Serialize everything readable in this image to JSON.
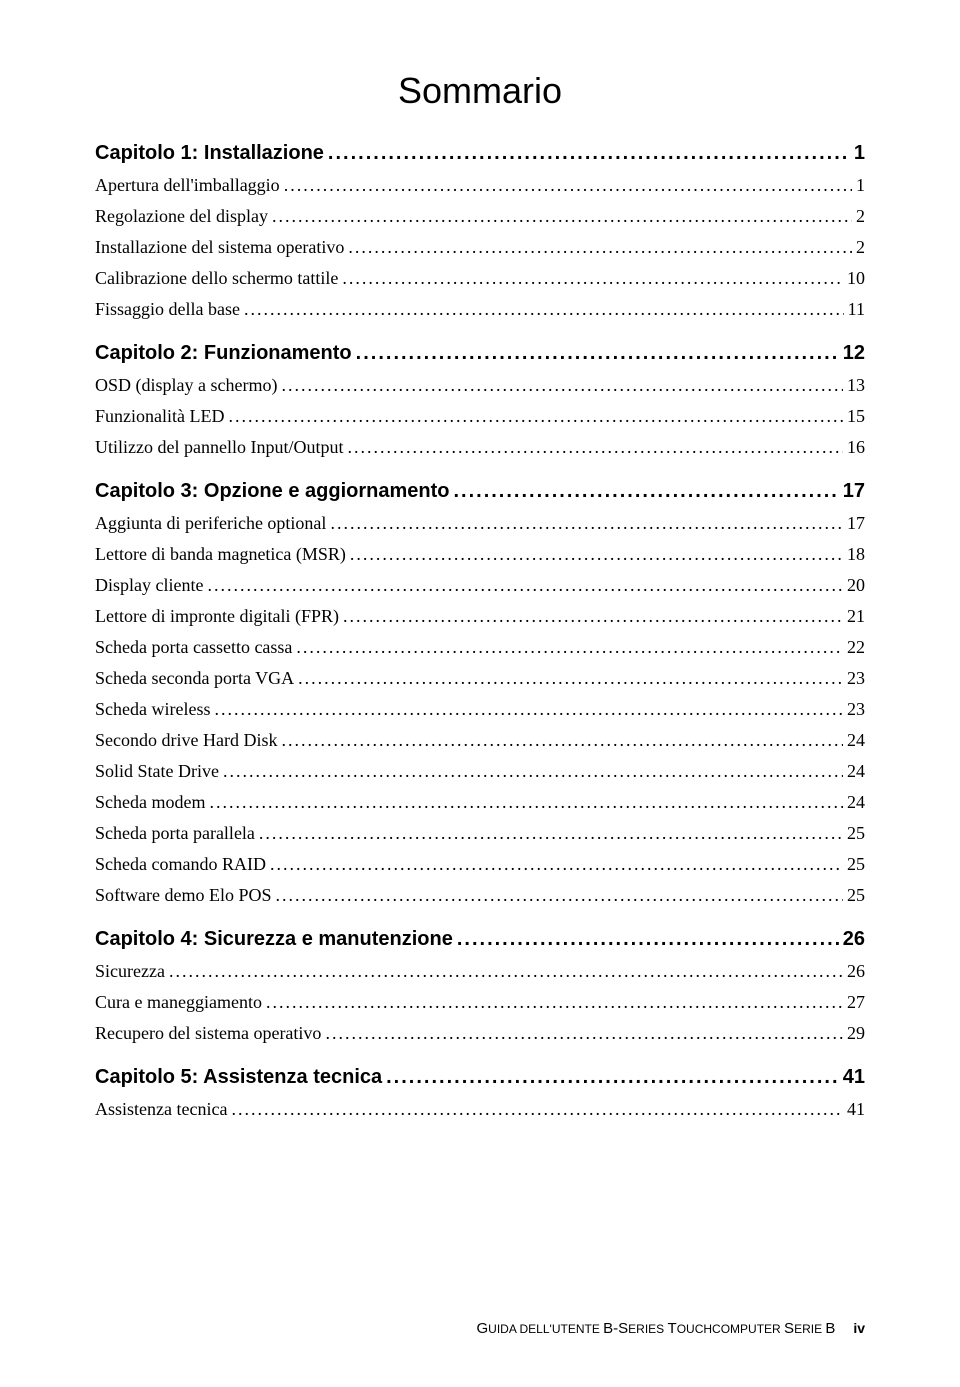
{
  "title": "Sommario",
  "leader_char": ".",
  "chapters": [
    {
      "heading": "Capitolo 1:  Installazione",
      "page": "1",
      "entries": [
        {
          "label": "Apertura dell'imballaggio",
          "page": "1"
        },
        {
          "label": "Regolazione del display",
          "page": "2"
        },
        {
          "label": "Installazione del sistema operativo",
          "page": "2"
        },
        {
          "label": "Calibrazione dello schermo tattile",
          "page": "10"
        },
        {
          "label": "Fissaggio della base",
          "page": "11"
        }
      ]
    },
    {
      "heading": "Capitolo 2:  Funzionamento",
      "page": "12",
      "entries": [
        {
          "label": "OSD (display a schermo)",
          "page": "13"
        },
        {
          "label": "Funzionalità LED",
          "page": "15"
        },
        {
          "label": "Utilizzo del pannello Input/Output",
          "page": "16"
        }
      ]
    },
    {
      "heading": "Capitolo 3:  Opzione e aggiornamento",
      "page": "17",
      "entries": [
        {
          "label": "Aggiunta di periferiche optional",
          "page": "17"
        },
        {
          "label": "Lettore di banda magnetica (MSR)",
          "page": "18"
        },
        {
          "label": "Display cliente",
          "page": "20"
        },
        {
          "label": "Lettore di impronte digitali (FPR)",
          "page": "21"
        },
        {
          "label": "Scheda porta cassetto cassa",
          "page": "22"
        },
        {
          "label": "Scheda seconda porta VGA",
          "page": "23"
        },
        {
          "label": "Scheda wireless",
          "page": "23"
        },
        {
          "label": "Secondo drive Hard Disk",
          "page": "24"
        },
        {
          "label": "Solid State Drive",
          "page": "24"
        },
        {
          "label": "Scheda modem",
          "page": "24"
        },
        {
          "label": "Scheda porta parallela",
          "page": "25"
        },
        {
          "label": "Scheda comando RAID",
          "page": "25"
        },
        {
          "label": "Software demo Elo POS",
          "page": "25"
        }
      ]
    },
    {
      "heading": "Capitolo 4:  Sicurezza e manutenzione",
      "page": "26",
      "entries": [
        {
          "label": "Sicurezza",
          "page": "26"
        },
        {
          "label": "Cura e maneggiamento",
          "page": "27"
        },
        {
          "label": "Recupero del sistema operativo",
          "page": "29"
        }
      ]
    },
    {
      "heading": "Capitolo 5:  Assistenza tecnica",
      "page": "41",
      "entries": [
        {
          "label": "Assistenza tecnica",
          "page": "41"
        }
      ]
    }
  ],
  "footer": {
    "text_prefix": "G",
    "text": "UIDA DELL'UTENTE ",
    "text2_prefix": "B-S",
    "text2": "ERIES ",
    "text3_prefix": "T",
    "text3": "OUCHCOMPUTER ",
    "text4_prefix": "S",
    "text4": "ERIE ",
    "text5": "B",
    "pagenum": "iv"
  },
  "colors": {
    "text": "#000000",
    "background": "#ffffff"
  },
  "typography": {
    "title_fontsize": 36,
    "chapter_fontsize": 20,
    "entry_fontsize": 18,
    "footer_fontsize": 14,
    "title_font": "Arial",
    "chapter_font": "Arial",
    "entry_font": "Times New Roman"
  }
}
